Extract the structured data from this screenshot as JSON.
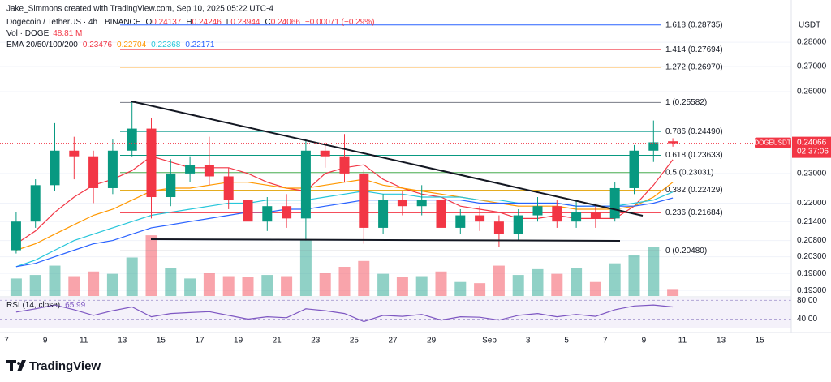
{
  "header": {
    "credit": "Jake_Simmons created with TradingView.com, Sep 10, 2025 05:22 UTC-4"
  },
  "legend": {
    "symbol": "Dogecoin / TetherUS · 4h · BINANCE",
    "quote": [
      {
        "key": "O",
        "value": 0.24137
      },
      {
        "key": "H",
        "value": 0.24246
      },
      {
        "key": "L",
        "value": 0.23944
      },
      {
        "key": "C",
        "value": 0.24066
      }
    ],
    "change": "−0.00071 (−0.29%)",
    "volume_label": "Vol · DOGE",
    "volume_value": "48.81 M",
    "ema_label": "EMA 20/50/100/200",
    "rsi_label": "RSI (14, close)"
  },
  "chart_data": {
    "type": "candlestick",
    "log_scale": true,
    "grid": true,
    "y_axis_label": "USDT",
    "categories": [
      "7",
      null,
      "9",
      null,
      "11",
      null,
      "13",
      null,
      "15",
      null,
      "17",
      null,
      "19",
      null,
      "21",
      null,
      "23",
      null,
      "25",
      null,
      "27",
      null,
      "29",
      null,
      null,
      "Sep",
      null,
      "3",
      null,
      "5",
      null,
      "7",
      null,
      "9",
      null,
      "11",
      null,
      "13",
      null,
      "15"
    ],
    "open": [
      0.205,
      0.214,
      0.226,
      0.238,
      0.236,
      0.225,
      0.238,
      0.246,
      0.222,
      0.23,
      0.233,
      0.229,
      0.221,
      0.214,
      0.219,
      0.215,
      0.238,
      0.236,
      0.23,
      0.212,
      0.221,
      0.219,
      0.221,
      0.212,
      0.216,
      0.214,
      0.21,
      0.216,
      0.219,
      0.214,
      0.217,
      0.215,
      0.225,
      0.238,
      0.24137,
      null,
      null,
      null,
      null,
      null
    ],
    "high": [
      0.217,
      0.228,
      0.248,
      0.243,
      0.238,
      0.242,
      0.256,
      0.25,
      0.235,
      0.236,
      0.243,
      0.232,
      0.223,
      0.222,
      0.223,
      0.242,
      0.241,
      0.244,
      0.231,
      0.223,
      0.224,
      0.226,
      0.222,
      0.218,
      0.219,
      0.216,
      0.218,
      0.222,
      0.221,
      0.221,
      0.219,
      0.227,
      0.24,
      0.249,
      0.24246,
      null,
      null,
      null,
      null,
      null
    ],
    "low": [
      0.204,
      0.212,
      0.224,
      0.228,
      0.22,
      0.223,
      0.236,
      0.215,
      0.219,
      0.227,
      0.226,
      0.218,
      0.209,
      0.211,
      0.212,
      0.208,
      0.232,
      0.227,
      0.207,
      0.21,
      0.216,
      0.216,
      0.209,
      0.21,
      0.211,
      0.206,
      0.208,
      0.214,
      0.212,
      0.212,
      0.212,
      0.214,
      0.223,
      0.234,
      0.23944,
      null,
      null,
      null,
      null,
      null
    ],
    "close": [
      0.214,
      0.226,
      0.238,
      0.236,
      0.225,
      0.238,
      0.246,
      0.222,
      0.23,
      0.233,
      0.229,
      0.221,
      0.214,
      0.219,
      0.215,
      0.238,
      0.236,
      0.23,
      0.212,
      0.221,
      0.219,
      0.221,
      0.212,
      0.216,
      0.214,
      0.21,
      0.216,
      0.219,
      0.214,
      0.217,
      0.215,
      0.225,
      0.238,
      0.241,
      0.24066,
      null,
      null,
      null,
      null,
      null
    ],
    "up_color": "#089981",
    "down_color": "#f23645",
    "ylim": [
      0.1914,
      0.2965
    ],
    "yticks": [
      {
        "value": 0.28,
        "label": "0.28000"
      },
      {
        "value": 0.27,
        "label": "0.27000"
      },
      {
        "value": 0.26,
        "label": "0.26000"
      },
      {
        "value": 0.23,
        "label": "0.23000"
      },
      {
        "value": 0.22,
        "label": "0.22000"
      },
      {
        "value": 0.214,
        "label": "0.21400"
      },
      {
        "value": 0.208,
        "label": "0.20800"
      },
      {
        "value": 0.203,
        "label": "0.20300"
      },
      {
        "value": 0.198,
        "label": "0.19800"
      },
      {
        "value": 0.193,
        "label": "0.19300"
      }
    ],
    "volume": {
      "values": [
        150,
        180,
        260,
        170,
        210,
        190,
        330,
        520,
        240,
        150,
        200,
        170,
        160,
        180,
        170,
        480,
        200,
        250,
        300,
        190,
        160,
        170,
        210,
        120,
        110,
        260,
        180,
        230,
        190,
        240,
        120,
        280,
        350,
        420,
        60,
        null,
        null,
        null,
        null,
        null
      ],
      "vlim": [
        0,
        2500
      ]
    },
    "series": [
      {
        "name": "EMA 20",
        "color": "#f23645",
        "last": 0.23476,
        "values": [
          0.207,
          0.211,
          0.217,
          0.222,
          0.226,
          0.228,
          0.231,
          0.236,
          0.234,
          0.232,
          0.232,
          0.232,
          0.23,
          0.227,
          0.225,
          0.224,
          0.23,
          0.232,
          0.233,
          0.228,
          0.225,
          0.223,
          0.222,
          0.219,
          0.218,
          0.217,
          0.215,
          0.215,
          0.216,
          0.215,
          0.215,
          0.215,
          0.219,
          0.226,
          0.2348,
          null,
          null,
          null,
          null,
          null
        ]
      },
      {
        "name": "EMA 50",
        "color": "#ff9800",
        "last": 0.22704,
        "values": [
          0.205,
          0.207,
          0.21,
          0.213,
          0.216,
          0.218,
          0.221,
          0.224,
          0.225,
          0.225,
          0.226,
          0.227,
          0.227,
          0.226,
          0.225,
          0.225,
          0.226,
          0.227,
          0.228,
          0.226,
          0.225,
          0.224,
          0.223,
          0.222,
          0.221,
          0.22,
          0.219,
          0.219,
          0.219,
          0.218,
          0.218,
          0.218,
          0.219,
          0.222,
          0.227,
          null,
          null,
          null,
          null,
          null
        ]
      },
      {
        "name": "EMA 100",
        "color": "#26c6da",
        "last": 0.22368,
        "values": [
          0.2,
          0.202,
          0.205,
          0.208,
          0.21,
          0.212,
          0.214,
          0.216,
          0.217,
          0.218,
          0.219,
          0.22,
          0.22,
          0.221,
          0.221,
          0.221,
          0.222,
          0.223,
          0.224,
          0.223,
          0.223,
          0.222,
          0.222,
          0.222,
          0.221,
          0.221,
          0.22,
          0.22,
          0.22,
          0.219,
          0.219,
          0.219,
          0.22,
          0.221,
          0.2237,
          null,
          null,
          null,
          null,
          null
        ]
      },
      {
        "name": "EMA 200",
        "color": "#2962ff",
        "last": 0.22171,
        "values": [
          0.2,
          0.201,
          0.203,
          0.205,
          0.207,
          0.208,
          0.21,
          0.212,
          0.213,
          0.214,
          0.215,
          0.216,
          0.217,
          0.217,
          0.218,
          0.218,
          0.219,
          0.22,
          0.221,
          0.221,
          0.221,
          0.221,
          0.221,
          0.221,
          0.22,
          0.22,
          0.22,
          0.22,
          0.22,
          0.219,
          0.219,
          0.219,
          0.219,
          0.22,
          0.2217,
          null,
          null,
          null,
          null,
          null
        ]
      }
    ],
    "fib_levels": [
      {
        "label": "1.618 (0.28735)",
        "value": 0.28735,
        "color": "#2962ff"
      },
      {
        "label": "1.414 (0.27694)",
        "value": 0.27694,
        "color": "#f23645"
      },
      {
        "label": "1.272 (0.26970)",
        "value": 0.2697,
        "color": "#ff9800"
      },
      {
        "label": "1 (0.25582)",
        "value": 0.25582,
        "color": "#787b86"
      },
      {
        "label": "0.786 (0.24490)",
        "value": 0.2449,
        "color": "#26a69a"
      },
      {
        "label": "0.618 (0.23633)",
        "value": 0.23633,
        "color": "#089981"
      },
      {
        "label": "0.5 (0.23031)",
        "value": 0.23031,
        "color": "#4caf50"
      },
      {
        "label": "0.382 (0.22429)",
        "value": 0.22429,
        "color": "#e0a000"
      },
      {
        "label": "0.236 (0.21684)",
        "value": 0.21684,
        "color": "#f23645"
      },
      {
        "label": "0 (0.20480)",
        "value": 0.2048,
        "color": "#787b86"
      }
    ],
    "last_price": {
      "symbol": "DOGEUSDT",
      "value": 0.24066,
      "countdown": "02:37:06",
      "color": "#f23645"
    },
    "rsi": {
      "color": "#7e57c2",
      "ylim": [
        22,
        84
      ],
      "yticks": [
        {
          "value": 80,
          "label": "80.00"
        },
        {
          "value": 40,
          "label": "40.00"
        }
      ],
      "values": [
        55,
        62,
        70,
        60,
        48,
        58,
        66,
        45,
        52,
        54,
        56,
        48,
        40,
        45,
        43,
        62,
        58,
        52,
        35,
        48,
        46,
        50,
        38,
        45,
        44,
        38,
        48,
        52,
        45,
        50,
        46,
        60,
        68,
        70,
        65.99,
        null,
        null,
        null,
        null,
        null
      ]
    }
  },
  "footer": {
    "brand": "TradingView"
  }
}
